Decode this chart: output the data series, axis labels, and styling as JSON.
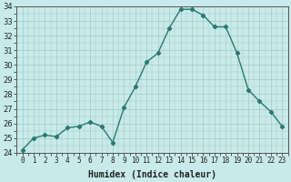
{
  "x": [
    0,
    1,
    2,
    3,
    4,
    5,
    6,
    7,
    8,
    9,
    10,
    11,
    12,
    13,
    14,
    15,
    16,
    17,
    18,
    19,
    20,
    21,
    22,
    23
  ],
  "y": [
    24.2,
    25.0,
    25.2,
    25.1,
    25.7,
    25.8,
    26.1,
    25.8,
    24.7,
    27.1,
    28.5,
    30.2,
    30.8,
    32.5,
    33.8,
    33.8,
    33.4,
    32.6,
    32.6,
    30.8,
    28.3,
    27.5,
    26.8,
    25.8
  ],
  "line_color": "#2a7a6e",
  "marker": "D",
  "marker_size": 2.2,
  "bg_color": "#c8eaea",
  "grid_color": "#a8c8c8",
  "xlabel": "Humidex (Indice chaleur)",
  "ylim": [
    24,
    34
  ],
  "xlim": [
    -0.5,
    23.5
  ],
  "yticks": [
    24,
    25,
    26,
    27,
    28,
    29,
    30,
    31,
    32,
    33,
    34
  ],
  "xticks": [
    0,
    1,
    2,
    3,
    4,
    5,
    6,
    7,
    8,
    9,
    10,
    11,
    12,
    13,
    14,
    15,
    16,
    17,
    18,
    19,
    20,
    21,
    22,
    23
  ],
  "xtick_labels": [
    "0",
    "1",
    "2",
    "3",
    "4",
    "5",
    "6",
    "7",
    "8",
    "9",
    "10",
    "11",
    "12",
    "13",
    "14",
    "15",
    "16",
    "17",
    "18",
    "19",
    "20",
    "21",
    "22",
    "23"
  ],
  "line_width": 1.0,
  "tick_fontsize": 5.5,
  "ylabel_fontsize": 6.0,
  "xlabel_fontsize": 7.0,
  "tick_color": "#222222",
  "spine_color": "#555555"
}
